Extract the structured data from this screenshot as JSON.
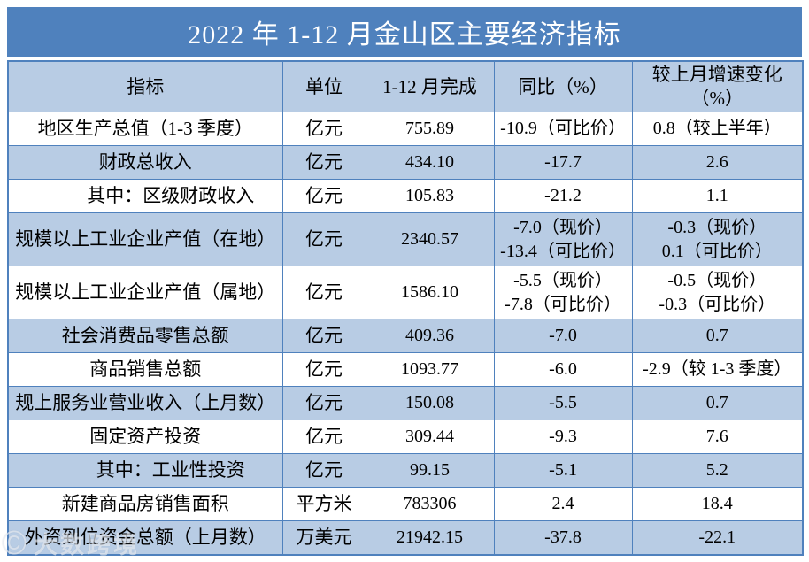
{
  "title": "2022 年 1-12 月金山区主要经济指标",
  "colors": {
    "accent": "#4f81bd",
    "row_shade": "#b8cce4",
    "title_text": "#ffffff",
    "body_text": "#000000"
  },
  "watermark": {
    "logo": "©",
    "text": "大数跨境"
  },
  "table": {
    "headers": [
      "指标",
      "单位",
      "1-12 月完成",
      "同比（%）",
      "较上月增速变化（%）"
    ],
    "rows": [
      {
        "label": "地区生产总值（1-3 季度）",
        "indent": false,
        "unit": "亿元",
        "value": "755.89",
        "yoy": [
          "-10.9（可比价）"
        ],
        "change": [
          "0.8（较上半年）"
        ],
        "shaded": false,
        "tall": false
      },
      {
        "label": "财政总收入",
        "indent": false,
        "unit": "亿元",
        "value": "434.10",
        "yoy": [
          "-17.7"
        ],
        "change": [
          "2.6"
        ],
        "shaded": true,
        "tall": false
      },
      {
        "label": "其中：区级财政收入",
        "indent": true,
        "unit": "亿元",
        "value": "105.83",
        "yoy": [
          "-21.2"
        ],
        "change": [
          "1.1"
        ],
        "shaded": false,
        "tall": false
      },
      {
        "label": "规模以上工业企业产值（在地）",
        "indent": false,
        "unit": "亿元",
        "value": "2340.57",
        "yoy": [
          "-7.0（现价）",
          "-13.4（可比价）"
        ],
        "change": [
          "-0.3（现价）",
          "0.1（可比价）"
        ],
        "shaded": true,
        "tall": true
      },
      {
        "label": "规模以上工业企业产值（属地）",
        "indent": false,
        "unit": "亿元",
        "value": "1586.10",
        "yoy": [
          "-5.5（现价）",
          "-7.8（可比价）"
        ],
        "change": [
          "-0.5（现价）",
          "-0.3（可比价）"
        ],
        "shaded": false,
        "tall": true
      },
      {
        "label": "社会消费品零售总额",
        "indent": false,
        "unit": "亿元",
        "value": "409.36",
        "yoy": [
          "-7.0"
        ],
        "change": [
          "0.7"
        ],
        "shaded": true,
        "tall": false
      },
      {
        "label": "商品销售总额",
        "indent": false,
        "unit": "亿元",
        "value": "1093.77",
        "yoy": [
          "-6.0"
        ],
        "change": [
          "-2.9（较 1-3 季度）"
        ],
        "shaded": false,
        "tall": false
      },
      {
        "label": "规上服务业营业收入（上月数）",
        "indent": false,
        "unit": "亿元",
        "value": "150.08",
        "yoy": [
          "-5.5"
        ],
        "change": [
          "0.7"
        ],
        "shaded": true,
        "tall": false
      },
      {
        "label": "固定资产投资",
        "indent": false,
        "unit": "亿元",
        "value": "309.44",
        "yoy": [
          "-9.3"
        ],
        "change": [
          "7.6"
        ],
        "shaded": false,
        "tall": false
      },
      {
        "label": "其中：工业性投资",
        "indent": true,
        "unit": "亿元",
        "value": "99.15",
        "yoy": [
          "-5.1"
        ],
        "change": [
          "5.2"
        ],
        "shaded": true,
        "tall": false
      },
      {
        "label": "新建商品房销售面积",
        "indent": false,
        "unit": "平方米",
        "value": "783306",
        "yoy": [
          "2.4"
        ],
        "change": [
          "18.4"
        ],
        "shaded": false,
        "tall": false
      },
      {
        "label": "外资到位资金总额（上月数）",
        "indent": false,
        "unit": "万美元",
        "value": "21942.15",
        "yoy": [
          "-37.8"
        ],
        "change": [
          "-22.1"
        ],
        "shaded": true,
        "tall": false
      }
    ]
  }
}
